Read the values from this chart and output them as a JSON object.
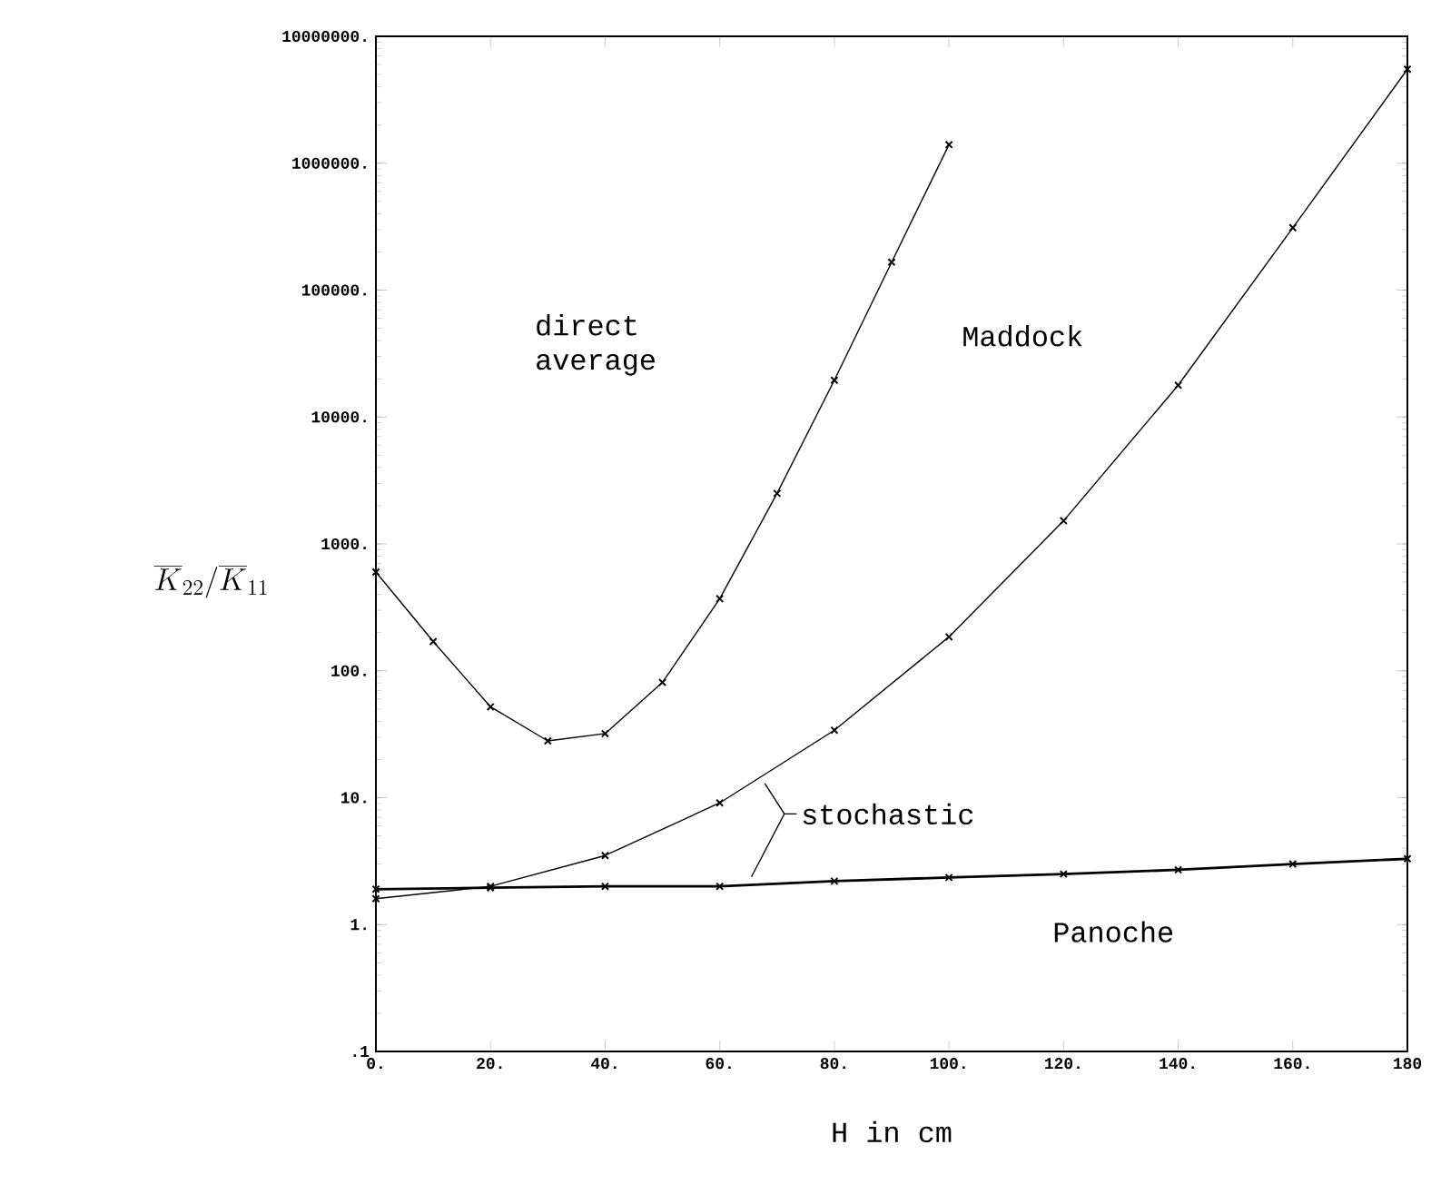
{
  "chart_data": {
    "type": "line",
    "xlabel": "H in cm",
    "ylabel": "\\overline{K}_{22}/\\overline{K}_{11}",
    "log": "y",
    "marker": "cross",
    "line_style": "solid",
    "grid": false,
    "xlim": [
      0,
      180
    ],
    "ylim": [
      0.1,
      10000000
    ],
    "xticks": [
      {
        "value": 0,
        "label": "0."
      },
      {
        "value": 20,
        "label": "20."
      },
      {
        "value": 40,
        "label": "40."
      },
      {
        "value": 60,
        "label": "60."
      },
      {
        "value": 80,
        "label": "80."
      },
      {
        "value": 100,
        "label": "100."
      },
      {
        "value": 120,
        "label": "120."
      },
      {
        "value": 140,
        "label": "140."
      },
      {
        "value": 160,
        "label": "160."
      },
      {
        "value": 180,
        "label": "180"
      }
    ],
    "yticks": [
      {
        "value": 0.1,
        "label": ".1"
      },
      {
        "value": 1,
        "label": "1."
      },
      {
        "value": 10,
        "label": "10."
      },
      {
        "value": 100,
        "label": "100."
      },
      {
        "value": 1000,
        "label": "1000."
      },
      {
        "value": 10000,
        "label": "10000."
      },
      {
        "value": 100000,
        "label": "100000."
      },
      {
        "value": 1000000,
        "label": "1000000."
      },
      {
        "value": 10000000,
        "label": "10000000."
      }
    ],
    "series": [
      {
        "color": "#000000",
        "x": [
          0,
          10,
          20,
          30,
          40,
          50,
          60,
          70,
          80,
          90,
          100
        ],
        "values": [
          600,
          170,
          52,
          28,
          32,
          81,
          370,
          2500,
          19500,
          166000,
          1400000
        ]
      },
      {
        "color": "#000000",
        "x": [
          0,
          20,
          40,
          60,
          80,
          100,
          120,
          140,
          160,
          180
        ],
        "values": [
          1.6,
          2.0,
          3.5,
          9.1,
          34,
          185,
          1520,
          17800,
          310000,
          5500000
        ]
      },
      {
        "color": "#000000",
        "x": [
          0,
          20,
          40,
          60,
          80,
          100,
          120,
          140,
          160,
          180
        ],
        "values": [
          1.9,
          1.95,
          2.0,
          2.0,
          2.2,
          2.35,
          2.5,
          2.7,
          3.0,
          3.3
        ]
      }
    ],
    "annotations": [
      "direct average",
      "Maddock",
      "stochastic",
      "Panoche"
    ]
  }
}
